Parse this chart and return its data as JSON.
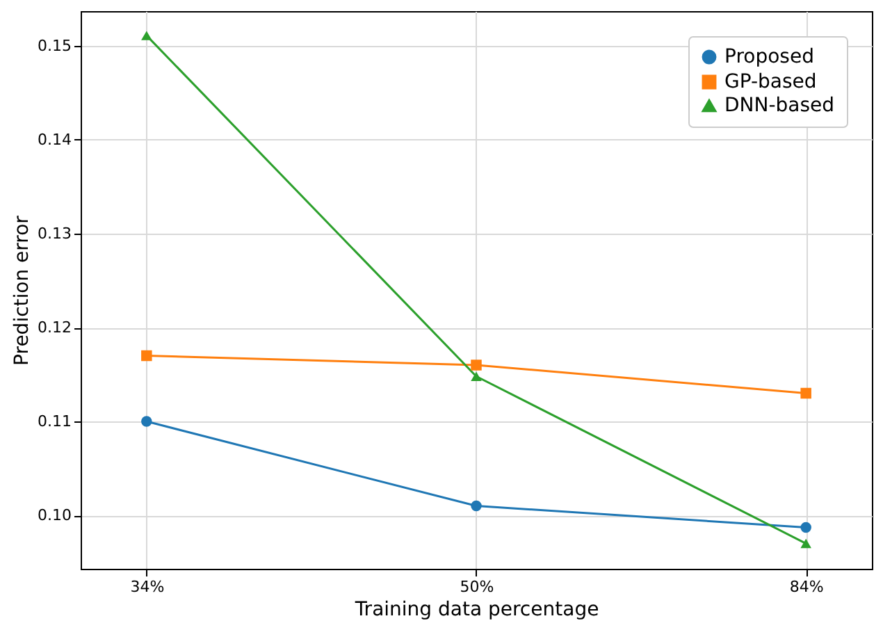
{
  "chart_data": {
    "type": "line",
    "xlabel": "Training data percentage",
    "ylabel": "Prediction error",
    "categories": [
      "34%",
      "50%",
      "84%"
    ],
    "series": [
      {
        "name": "Proposed",
        "color": "#1f77b4",
        "marker": "circle",
        "values": [
          0.11,
          0.101,
          0.0987
        ]
      },
      {
        "name": "GP-based",
        "color": "#ff7f0e",
        "marker": "square",
        "values": [
          0.117,
          0.116,
          0.113
        ]
      },
      {
        "name": "DNN-based",
        "color": "#2ca02c",
        "marker": "triangle",
        "values": [
          0.1511,
          0.1148,
          0.097
        ]
      }
    ],
    "ylim": [
      0.0943,
      0.1537
    ],
    "yticks": [
      {
        "value": 0.1,
        "label": "0.10"
      },
      0.11,
      0.12,
      0.13,
      0.14,
      0.15
    ],
    "grid": true,
    "legend": "top right",
    "line_style": "solid"
  }
}
